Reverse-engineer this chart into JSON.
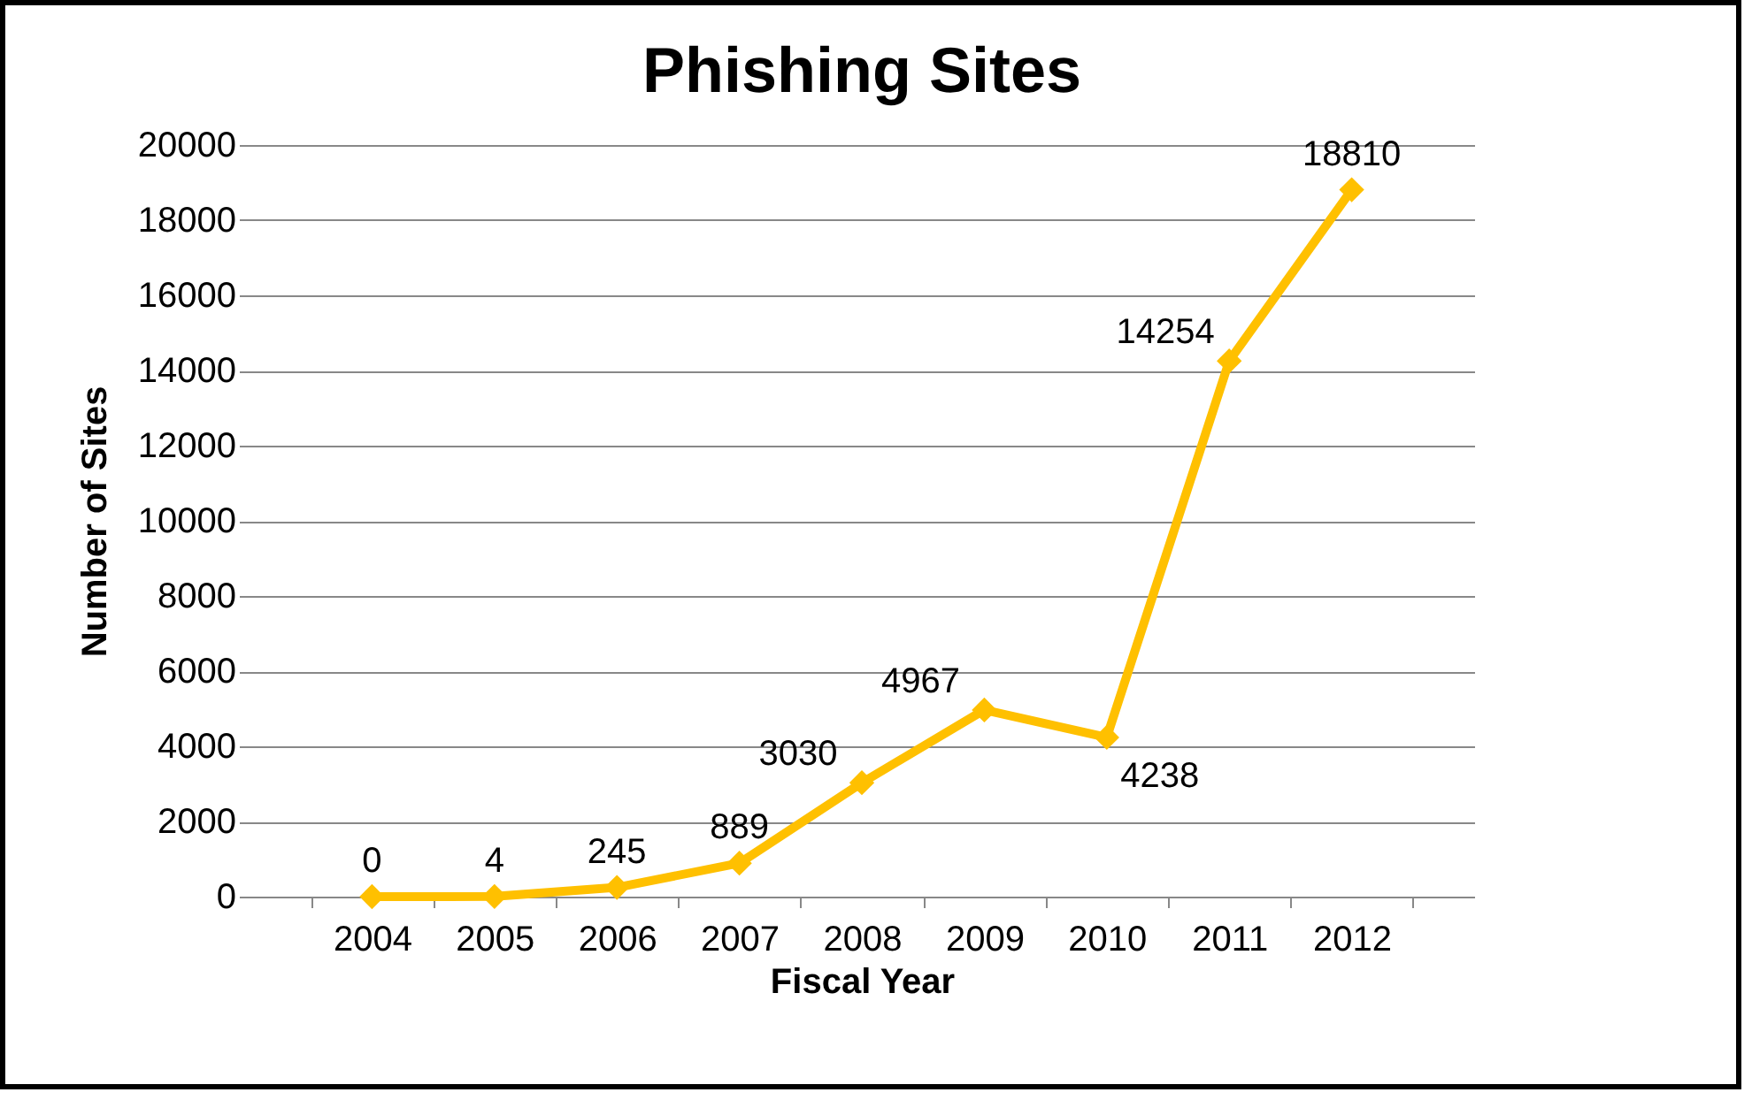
{
  "chart_data": {
    "type": "line",
    "title": "Phishing Sites",
    "xlabel": "Fiscal Year",
    "ylabel": "Number of Sites",
    "categories": [
      "2004",
      "2005",
      "2006",
      "2007",
      "2008",
      "2009",
      "2010",
      "2011",
      "2012"
    ],
    "series": [
      {
        "color": "#ffc000",
        "values": [
          0,
          4,
          245,
          889,
          3030,
          4967,
          4238,
          14254,
          18810
        ]
      }
    ],
    "ylim": [
      0,
      20000
    ],
    "yticks": [
      0,
      2000,
      4000,
      6000,
      8000,
      10000,
      12000,
      14000,
      16000,
      18000,
      20000
    ],
    "grid": "y",
    "marker": "diamond",
    "line_style": "solid",
    "data_labels": true
  }
}
